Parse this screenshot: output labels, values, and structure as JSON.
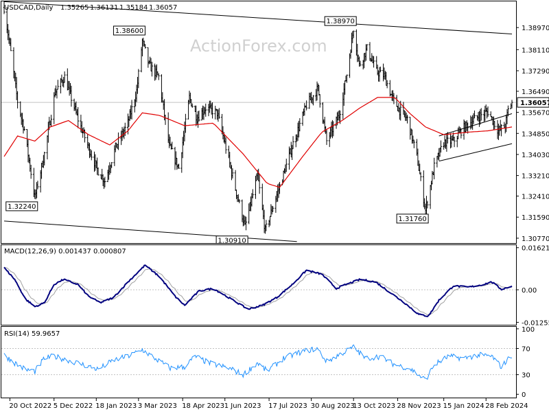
{
  "chart_data": {
    "type": "candlestick",
    "symbol_label": "USDCAD,Daily",
    "ohlc": [
      "1.35265",
      "1.36131",
      "1.35184",
      "1.36057"
    ],
    "watermark": "ActionForex.com",
    "last_price": "1.36057",
    "main_panel": {
      "ylim": [
        1.3058,
        1.3999
      ],
      "y_ticks": [
        "1.38970",
        "1.38110",
        "1.37290",
        "1.36490",
        "1.35670",
        "1.34850",
        "1.34030",
        "1.33210",
        "1.32410",
        "1.31590",
        "1.30770"
      ],
      "annotations": [
        {
          "label": "1.38600",
          "value": 1.386,
          "date": "2023-03-07",
          "where": "above"
        },
        {
          "label": "1.38970",
          "value": 1.3897,
          "date": "2023-10-13",
          "where": "above"
        },
        {
          "label": "1.30910",
          "value": 1.3091,
          "date": "2023-06-22",
          "where": "below"
        },
        {
          "label": "1.31760",
          "value": 1.3176,
          "date": "2023-12-27",
          "where": "below"
        },
        {
          "label": "1.32240",
          "value": 1.3224,
          "date": "2022-11-15",
          "where": "below"
        }
      ],
      "price_anchors": [
        [
          "2022-10-14",
          1.3975
        ],
        [
          "2022-10-21",
          1.38
        ],
        [
          "2022-10-28",
          1.361
        ],
        [
          "2022-11-04",
          1.35
        ],
        [
          "2022-11-15",
          1.3235
        ],
        [
          "2022-11-25",
          1.3405
        ],
        [
          "2022-12-06",
          1.3645
        ],
        [
          "2022-12-16",
          1.3705
        ],
        [
          "2022-12-30",
          1.354
        ],
        [
          "2023-01-10",
          1.343
        ],
        [
          "2023-01-19",
          1.3345
        ],
        [
          "2023-01-27",
          1.33
        ],
        [
          "2023-02-07",
          1.343
        ],
        [
          "2023-02-20",
          1.3525
        ],
        [
          "2023-03-01",
          1.365
        ],
        [
          "2023-03-07",
          1.3845
        ],
        [
          "2023-03-14",
          1.375
        ],
        [
          "2023-03-24",
          1.3705
        ],
        [
          "2023-04-04",
          1.3435
        ],
        [
          "2023-04-14",
          1.335
        ],
        [
          "2023-04-25",
          1.3625
        ],
        [
          "2023-05-03",
          1.3545
        ],
        [
          "2023-05-12",
          1.3585
        ],
        [
          "2023-05-24",
          1.3565
        ],
        [
          "2023-06-02",
          1.343
        ],
        [
          "2023-06-12",
          1.327
        ],
        [
          "2023-06-22",
          1.312
        ],
        [
          "2023-06-30",
          1.3245
        ],
        [
          "2023-07-05",
          1.332
        ],
        [
          "2023-07-13",
          1.3105
        ],
        [
          "2023-07-21",
          1.32
        ],
        [
          "2023-08-01",
          1.3325
        ],
        [
          "2023-08-11",
          1.3445
        ],
        [
          "2023-08-25",
          1.3595
        ],
        [
          "2023-09-06",
          1.366
        ],
        [
          "2023-09-15",
          1.3455
        ],
        [
          "2023-09-28",
          1.3555
        ],
        [
          "2023-10-06",
          1.3715
        ],
        [
          "2023-10-13",
          1.3895
        ],
        [
          "2023-10-19",
          1.375
        ],
        [
          "2023-10-27",
          1.3815
        ],
        [
          "2023-11-06",
          1.3725
        ],
        [
          "2023-11-14",
          1.371
        ],
        [
          "2023-11-22",
          1.3625
        ],
        [
          "2023-11-30",
          1.3575
        ],
        [
          "2023-12-08",
          1.354
        ],
        [
          "2023-12-18",
          1.3395
        ],
        [
          "2023-12-27",
          1.3185
        ],
        [
          "2024-01-05",
          1.3355
        ],
        [
          "2024-01-15",
          1.345
        ],
        [
          "2024-01-25",
          1.3455
        ],
        [
          "2024-02-02",
          1.3495
        ],
        [
          "2024-02-12",
          1.353
        ],
        [
          "2024-02-22",
          1.3555
        ],
        [
          "2024-03-01",
          1.357
        ],
        [
          "2024-03-12",
          1.3495
        ],
        [
          "2024-03-19",
          1.3515
        ],
        [
          "2024-03-22",
          1.3575
        ],
        [
          "2024-03-26",
          1.3606
        ]
      ],
      "moving_average_anchors": [
        [
          "2022-10-14",
          1.3395
        ],
        [
          "2022-10-28",
          1.3475
        ],
        [
          "2022-11-15",
          1.3455
        ],
        [
          "2022-12-01",
          1.351
        ],
        [
          "2022-12-20",
          1.3535
        ],
        [
          "2023-01-10",
          1.348
        ],
        [
          "2023-02-01",
          1.344
        ],
        [
          "2023-02-20",
          1.3495
        ],
        [
          "2023-03-07",
          1.3565
        ],
        [
          "2023-03-25",
          1.3555
        ],
        [
          "2023-04-20",
          1.3515
        ],
        [
          "2023-05-20",
          1.3525
        ],
        [
          "2023-06-20",
          1.3405
        ],
        [
          "2023-07-15",
          1.329
        ],
        [
          "2023-07-28",
          1.3275
        ],
        [
          "2023-08-20",
          1.339
        ],
        [
          "2023-09-10",
          1.349
        ],
        [
          "2023-10-01",
          1.3535
        ],
        [
          "2023-10-20",
          1.3585
        ],
        [
          "2023-11-07",
          1.3625
        ],
        [
          "2023-11-25",
          1.3625
        ],
        [
          "2023-12-10",
          1.3565
        ],
        [
          "2023-12-27",
          1.351
        ],
        [
          "2024-01-15",
          1.348
        ],
        [
          "2024-02-10",
          1.349
        ],
        [
          "2024-03-01",
          1.3495
        ],
        [
          "2024-03-26",
          1.351
        ]
      ],
      "trend_lines": [
        {
          "from": [
            "2022-10-14",
            1.3998
          ],
          "to": [
            "2024-03-26",
            1.3872
          ]
        },
        {
          "from": [
            "2022-10-14",
            1.3144
          ],
          "to": [
            "2023-08-15",
            1.3064
          ]
        },
        {
          "from": [
            "2024-01-10",
            1.3475
          ],
          "to": [
            "2024-03-26",
            1.3562
          ]
        },
        {
          "from": [
            "2024-01-10",
            1.3377
          ],
          "to": [
            "2024-03-26",
            1.3445
          ]
        }
      ]
    },
    "macd_panel": {
      "label": "MACD(12,26,9) 0.001437 0.000807",
      "ylim": [
        -0.0135,
        0.0172
      ],
      "y_ticks": [
        "0.016213",
        "0.00",
        "-0.01255"
      ],
      "anchors": [
        [
          "2022-10-14",
          0.0085
        ],
        [
          "2022-10-25",
          0.004
        ],
        [
          "2022-11-05",
          -0.0035
        ],
        [
          "2022-11-15",
          -0.0065
        ],
        [
          "2022-11-25",
          -0.005
        ],
        [
          "2022-12-05",
          0.002
        ],
        [
          "2022-12-15",
          0.004
        ],
        [
          "2022-12-30",
          0.002
        ],
        [
          "2023-01-10",
          -0.0025
        ],
        [
          "2023-01-22",
          -0.005
        ],
        [
          "2023-02-05",
          -0.003
        ],
        [
          "2023-02-20",
          0.003
        ],
        [
          "2023-03-10",
          0.0095
        ],
        [
          "2023-03-25",
          0.005
        ],
        [
          "2023-04-10",
          -0.0025
        ],
        [
          "2023-04-20",
          -0.006
        ],
        [
          "2023-05-05",
          -0.0005
        ],
        [
          "2023-05-20",
          0.0005
        ],
        [
          "2023-06-05",
          -0.003
        ],
        [
          "2023-06-25",
          -0.0075
        ],
        [
          "2023-07-10",
          -0.006
        ],
        [
          "2023-07-25",
          -0.003
        ],
        [
          "2023-08-10",
          0.002
        ],
        [
          "2023-08-25",
          0.0075
        ],
        [
          "2023-09-10",
          0.006
        ],
        [
          "2023-09-25",
          0.0005
        ],
        [
          "2023-10-05",
          0.002
        ],
        [
          "2023-10-20",
          0.004
        ],
        [
          "2023-11-05",
          0.003
        ],
        [
          "2023-11-20",
          -0.001
        ],
        [
          "2023-12-05",
          -0.005
        ],
        [
          "2023-12-20",
          -0.0095
        ],
        [
          "2023-12-30",
          -0.0102
        ],
        [
          "2024-01-10",
          -0.004
        ],
        [
          "2024-01-25",
          0.0015
        ],
        [
          "2024-02-10",
          0.001
        ],
        [
          "2024-02-25",
          0.002
        ],
        [
          "2024-03-05",
          0.003
        ],
        [
          "2024-03-15",
          0.0002
        ],
        [
          "2024-03-26",
          0.0014
        ]
      ]
    },
    "rsi_panel": {
      "label": "RSI(14) 59.9657",
      "ylim": [
        -5,
        103
      ],
      "y_ticks": [
        "100",
        "70",
        "30",
        "0"
      ],
      "anchors": [
        [
          "2022-10-14",
          60
        ],
        [
          "2022-10-25",
          48
        ],
        [
          "2022-11-05",
          38
        ],
        [
          "2022-11-15",
          35
        ],
        [
          "2022-11-25",
          55
        ],
        [
          "2022-12-05",
          58
        ],
        [
          "2022-12-20",
          52
        ],
        [
          "2023-01-05",
          45
        ],
        [
          "2023-01-20",
          38
        ],
        [
          "2023-02-05",
          52
        ],
        [
          "2023-02-20",
          58
        ],
        [
          "2023-03-07",
          68
        ],
        [
          "2023-03-20",
          55
        ],
        [
          "2023-04-05",
          40
        ],
        [
          "2023-04-20",
          42
        ],
        [
          "2023-05-01",
          58
        ],
        [
          "2023-05-15",
          48
        ],
        [
          "2023-06-05",
          40
        ],
        [
          "2023-06-20",
          30
        ],
        [
          "2023-07-05",
          48
        ],
        [
          "2023-07-15",
          35
        ],
        [
          "2023-08-01",
          55
        ],
        [
          "2023-08-20",
          65
        ],
        [
          "2023-09-05",
          70
        ],
        [
          "2023-09-15",
          50
        ],
        [
          "2023-09-30",
          62
        ],
        [
          "2023-10-13",
          72
        ],
        [
          "2023-10-25",
          55
        ],
        [
          "2023-11-10",
          58
        ],
        [
          "2023-11-25",
          45
        ],
        [
          "2023-12-10",
          40
        ],
        [
          "2023-12-27",
          22
        ],
        [
          "2024-01-05",
          45
        ],
        [
          "2024-01-20",
          58
        ],
        [
          "2024-02-05",
          55
        ],
        [
          "2024-02-20",
          60
        ],
        [
          "2024-03-05",
          58
        ],
        [
          "2024-03-15",
          42
        ],
        [
          "2024-03-26",
          60
        ]
      ]
    },
    "x_axis": {
      "start": "2022-10-14",
      "end": "2024-03-26",
      "ticks": [
        {
          "date": "2022-10-20",
          "label": "20 Oct 2022"
        },
        {
          "date": "2022-12-05",
          "label": "5 Dec 2022"
        },
        {
          "date": "2023-01-18",
          "label": "18 Jan 2023"
        },
        {
          "date": "2023-03-03",
          "label": "3 Mar 2023"
        },
        {
          "date": "2023-04-18",
          "label": "18 Apr 2023"
        },
        {
          "date": "2023-06-01",
          "label": "1 Jun 2023"
        },
        {
          "date": "2023-07-17",
          "label": "17 Jul 2023"
        },
        {
          "date": "2023-08-30",
          "label": "30 Aug 2023"
        },
        {
          "date": "2023-10-13",
          "label": "13 Oct 2023"
        },
        {
          "date": "2023-11-28",
          "label": "28 Nov 2023"
        },
        {
          "date": "2024-01-15",
          "label": "15 Jan 2024"
        },
        {
          "date": "2024-02-28",
          "label": "28 Feb 2024"
        }
      ]
    },
    "colors": {
      "bars": "#000000",
      "moving_average": "#e00000",
      "macd": "#00007f",
      "macd_signal": "#a0a0a0",
      "rsi": "#1e90ff",
      "trend_lines": "#000000",
      "grid": "#c0c0c0"
    }
  }
}
